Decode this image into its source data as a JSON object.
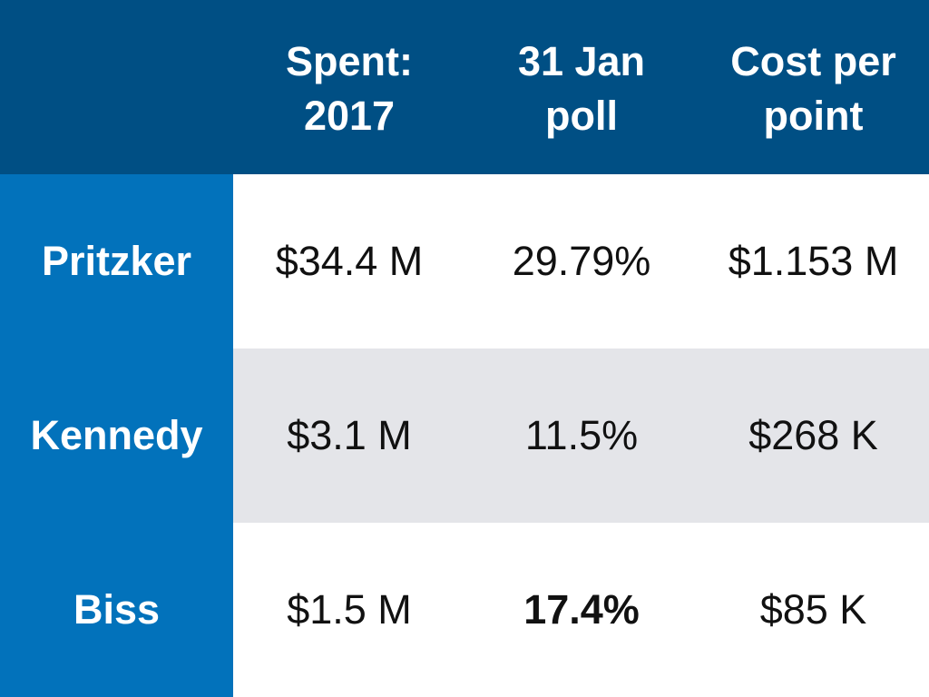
{
  "chart_data": {
    "type": "table",
    "columns": [
      "",
      "Spent:\n2017",
      "31 Jan\npoll",
      "Cost per\npoint"
    ],
    "rows": [
      {
        "label": "Pritzker",
        "cells": [
          "$34.4 M",
          "29.79%",
          "$1.153 M"
        ],
        "bold": [
          false,
          false,
          false
        ]
      },
      {
        "label": "Kennedy",
        "cells": [
          "$3.1 M",
          "11.5%",
          "$268 K"
        ],
        "bold": [
          false,
          false,
          false
        ]
      },
      {
        "label": "Biss",
        "cells": [
          "$1.5 M",
          "17.4%",
          "$85 K"
        ],
        "bold": [
          false,
          true,
          false
        ]
      }
    ]
  },
  "colors": {
    "header_bg": "#004f84",
    "row_label_bg": "#0272bb",
    "stripe_bg": "#e4e5e9",
    "text_on_dark": "#ffffff",
    "text_data": "#111111"
  }
}
